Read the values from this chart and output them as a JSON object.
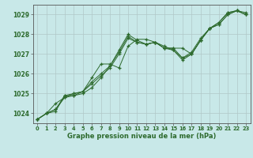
{
  "title": "Graphe pression niveau de la mer (hPa)",
  "background_color": "#c8e8e8",
  "grid_color": "#b0c8c8",
  "line_color": "#2d6a2d",
  "xlim": [
    -0.5,
    23.5
  ],
  "ylim": [
    1023.5,
    1029.5
  ],
  "yticks": [
    1024,
    1025,
    1026,
    1027,
    1028,
    1029
  ],
  "xticks": [
    0,
    1,
    2,
    3,
    4,
    5,
    6,
    7,
    8,
    9,
    10,
    11,
    12,
    13,
    14,
    15,
    16,
    17,
    18,
    19,
    20,
    21,
    22,
    23
  ],
  "series": [
    [
      1023.7,
      1024.0,
      1024.1,
      1024.9,
      1024.9,
      1025.0,
      1025.3,
      1025.8,
      1026.4,
      1027.2,
      1028.0,
      1027.7,
      1027.5,
      1027.6,
      1027.3,
      1027.3,
      1026.8,
      1027.0,
      1027.7,
      1028.3,
      1028.6,
      1029.1,
      1029.2,
      1029.1
    ],
    [
      1023.7,
      1024.0,
      1024.2,
      1024.8,
      1025.0,
      1025.1,
      1025.5,
      1025.9,
      1026.3,
      1027.0,
      1027.8,
      1027.6,
      1027.5,
      1027.6,
      1027.4,
      1027.2,
      1026.7,
      1027.0,
      1027.7,
      1028.3,
      1028.5,
      1029.0,
      1029.2,
      1029.0
    ],
    [
      1023.7,
      1024.0,
      1024.2,
      1024.9,
      1025.0,
      1025.1,
      1025.6,
      1026.0,
      1026.4,
      1027.1,
      1027.9,
      1027.6,
      1027.5,
      1027.6,
      1027.3,
      1027.2,
      1026.8,
      1027.1,
      1027.8,
      1028.3,
      1028.5,
      1029.0,
      1029.2,
      1029.0
    ],
    [
      1023.7,
      1024.0,
      1024.5,
      1024.8,
      1024.9,
      1025.1,
      1025.8,
      1026.5,
      1026.5,
      1026.3,
      1027.4,
      1027.75,
      1027.75,
      1027.6,
      1027.3,
      1027.3,
      1027.3,
      1027.0,
      1027.7,
      1028.3,
      1028.6,
      1029.1,
      1029.2,
      1029.0
    ]
  ],
  "xlabel_fontsize": 6.0,
  "ylabel_fontsize": 5.5,
  "xtick_fontsize": 4.8,
  "ytick_fontsize": 5.5
}
